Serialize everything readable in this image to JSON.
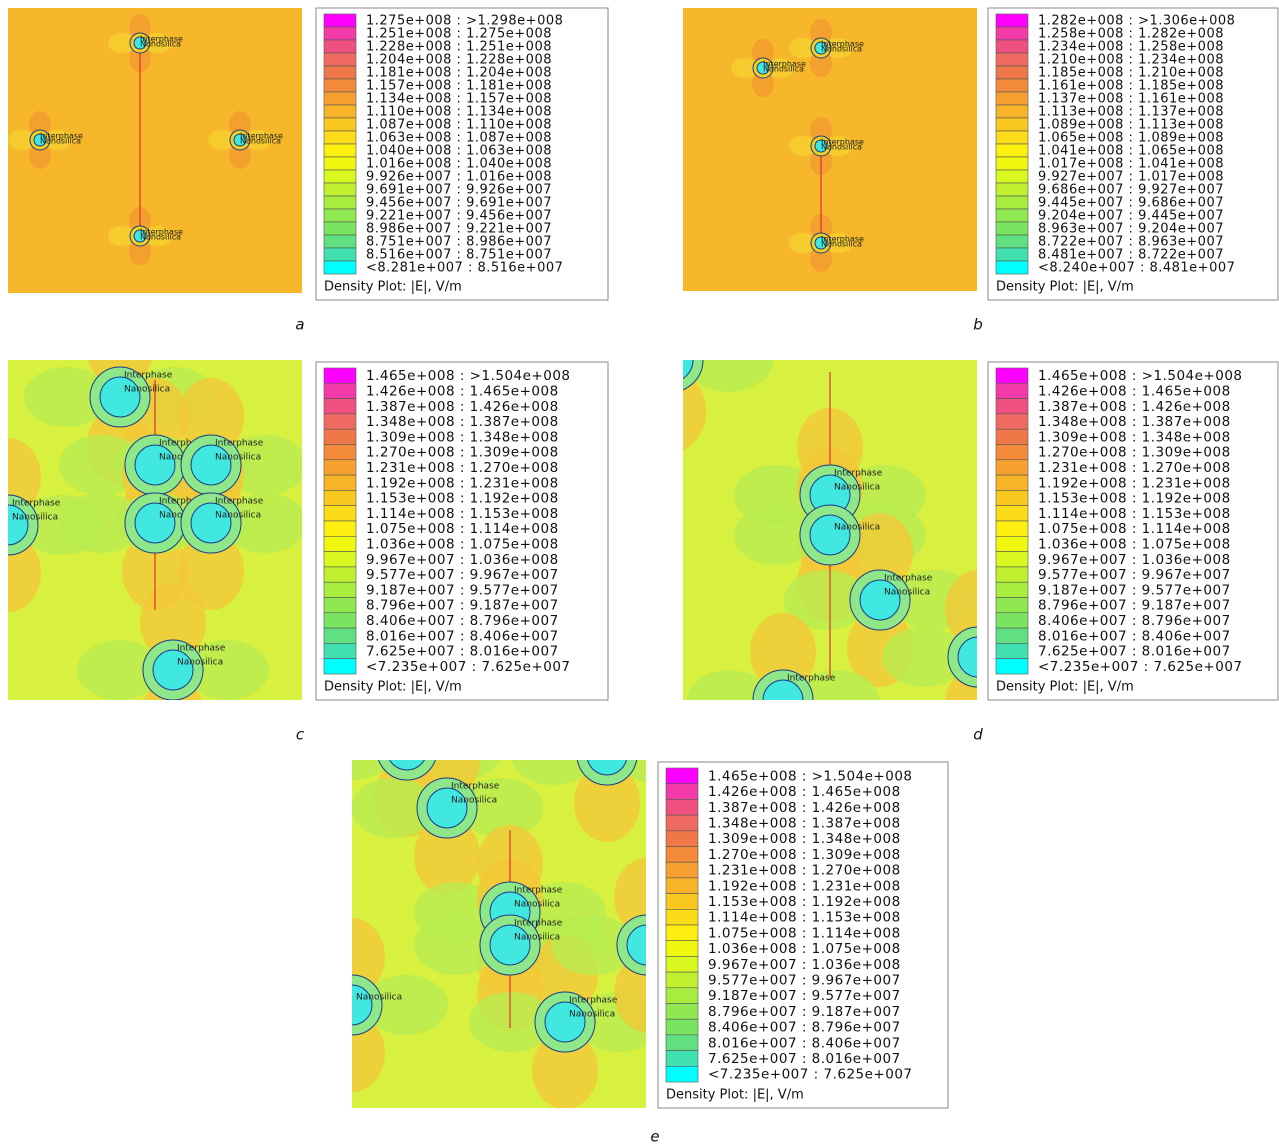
{
  "panels": [
    {
      "label": "a",
      "legend": {
        "rows": [
          "1.275e+008 : >1.298e+008",
          "1.251e+008 : 1.275e+008",
          "1.228e+008 : 1.251e+008",
          "1.204e+008 : 1.228e+008",
          "1.181e+008 : 1.204e+008",
          "1.157e+008 : 1.181e+008",
          "1.134e+008 : 1.157e+008",
          "1.110e+008 : 1.134e+008",
          "1.087e+008 : 1.110e+008",
          "1.063e+008 : 1.087e+008",
          "1.040e+008 : 1.063e+008",
          "1.016e+008 : 1.040e+008",
          "9.926e+007 : 1.016e+008",
          "9.691e+007 : 9.926e+007",
          "9.456e+007 : 9.691e+007",
          "9.221e+007 : 9.456e+007",
          "8.986e+007 : 9.221e+007",
          "8.751e+007 : 8.986e+007",
          "8.516e+007 : 8.751e+007",
          "<8.281e+007 : 8.516e+007"
        ],
        "title": "Density Plot: |E|, V/m"
      },
      "particles": [
        {
          "interphase": "Interphase",
          "core": "Nanosilica"
        },
        {
          "interphase": "Interphase",
          "core": "Nanosilica"
        },
        {
          "interphase": "Interphase",
          "core": "Nanosilica"
        },
        {
          "interphase": "Interphase",
          "core": "Nanosilica"
        }
      ]
    },
    {
      "label": "b",
      "legend": {
        "rows": [
          "1.282e+008 : >1.306e+008",
          "1.258e+008 : 1.282e+008",
          "1.234e+008 : 1.258e+008",
          "1.210e+008 : 1.234e+008",
          "1.185e+008 : 1.210e+008",
          "1.161e+008 : 1.185e+008",
          "1.137e+008 : 1.161e+008",
          "1.113e+008 : 1.137e+008",
          "1.089e+008 : 1.113e+008",
          "1.065e+008 : 1.089e+008",
          "1.041e+008 : 1.065e+008",
          "1.017e+008 : 1.041e+008",
          "9.927e+007 : 1.017e+008",
          "9.686e+007 : 9.927e+007",
          "9.445e+007 : 9.686e+007",
          "9.204e+007 : 9.445e+007",
          "8.963e+007 : 9.204e+007",
          "8.722e+007 : 8.963e+007",
          "8.481e+007 : 8.722e+007",
          "<8.240e+007 : 8.481e+007"
        ],
        "title": "Density Plot: |E|, V/m"
      },
      "particles": [
        {
          "interphase": "Interphase",
          "core": "Nanosilica"
        },
        {
          "interphase": "Interphase",
          "core": "Nanosilica"
        },
        {
          "interphase": "Interphase",
          "core": "Nanosilica"
        },
        {
          "interphase": "Interphase",
          "core": "Nanosilica"
        }
      ]
    },
    {
      "label": "c",
      "legend": {
        "rows": [
          "1.465e+008 : >1.504e+008",
          "1.426e+008 : 1.465e+008",
          "1.387e+008 : 1.426e+008",
          "1.348e+008 : 1.387e+008",
          "1.309e+008 : 1.348e+008",
          "1.270e+008 : 1.309e+008",
          "1.231e+008 : 1.270e+008",
          "1.192e+008 : 1.231e+008",
          "1.153e+008 : 1.192e+008",
          "1.114e+008 : 1.153e+008",
          "1.075e+008 : 1.114e+008",
          "1.036e+008 : 1.075e+008",
          "9.967e+007 : 1.036e+008",
          "9.577e+007 : 9.967e+007",
          "9.187e+007 : 9.577e+007",
          "8.796e+007 : 9.187e+007",
          "8.406e+007 : 8.796e+007",
          "8.016e+007 : 8.406e+007",
          "7.625e+007 : 8.016e+007",
          "<7.235e+007 : 7.625e+007"
        ],
        "title": "Density Plot: |E|, V/m"
      },
      "particles": [
        {
          "interphase": "Interphase",
          "core": "Nanosilica"
        },
        {
          "interphase": "Interphase",
          "core": "Nanosilica"
        },
        {
          "interphase": "Interphase",
          "core": "Nanosilica"
        },
        {
          "interphase": "Interphase",
          "core": "Nanosilica"
        },
        {
          "interphase": "Interphase",
          "core": "Nanosilica"
        },
        {
          "interphase": "Interphase",
          "core": "Nanosilica"
        },
        {
          "interphase": "Interphase",
          "core": "Nanosilica"
        }
      ]
    },
    {
      "label": "d",
      "legend": {
        "rows": [
          "1.465e+008 : >1.504e+008",
          "1.426e+008 : 1.465e+008",
          "1.387e+008 : 1.426e+008",
          "1.348e+008 : 1.387e+008",
          "1.309e+008 : 1.348e+008",
          "1.270e+008 : 1.309e+008",
          "1.231e+008 : 1.270e+008",
          "1.192e+008 : 1.231e+008",
          "1.153e+008 : 1.192e+008",
          "1.114e+008 : 1.153e+008",
          "1.075e+008 : 1.114e+008",
          "1.036e+008 : 1.075e+008",
          "9.967e+007 : 1.036e+008",
          "9.577e+007 : 9.967e+007",
          "9.187e+007 : 9.577e+007",
          "8.796e+007 : 9.187e+007",
          "8.406e+007 : 8.796e+007",
          "8.016e+007 : 8.406e+007",
          "7.625e+007 : 8.016e+007",
          "<7.235e+007 : 7.625e+007"
        ],
        "title": "Density Plot: |E|, V/m"
      },
      "particles": [
        {
          "core": "Nanosilica"
        },
        {
          "interphase": "Interphase",
          "core": "Nanosilica"
        },
        {
          "core": "Nanosilica"
        },
        {
          "interphase": "Interphase",
          "core": "Nanosilica"
        },
        {
          "interphase": "Interphase"
        }
      ]
    },
    {
      "label": "e",
      "legend": {
        "rows": [
          "1.465e+008 : >1.504e+008",
          "1.426e+008 : 1.465e+008",
          "1.387e+008 : 1.426e+008",
          "1.348e+008 : 1.387e+008",
          "1.309e+008 : 1.348e+008",
          "1.270e+008 : 1.309e+008",
          "1.231e+008 : 1.270e+008",
          "1.192e+008 : 1.231e+008",
          "1.153e+008 : 1.192e+008",
          "1.114e+008 : 1.153e+008",
          "1.075e+008 : 1.114e+008",
          "1.036e+008 : 1.075e+008",
          "9.967e+007 : 1.036e+008",
          "9.577e+007 : 9.967e+007",
          "9.187e+007 : 9.577e+007",
          "8.796e+007 : 9.187e+007",
          "8.406e+007 : 8.796e+007",
          "8.016e+007 : 8.406e+007",
          "7.625e+007 : 8.016e+007",
          "<7.235e+007 : 7.625e+007"
        ],
        "title": "Density Plot: |E|, V/m"
      },
      "particles": [
        {
          "interphase": "Interphase",
          "core": "Nanosilica"
        },
        {
          "interphase": "Interphase",
          "core": "Nanosilica"
        },
        {
          "core": "Nanosilica"
        },
        {
          "interphase": "Interphase",
          "core": "Nanosilica"
        },
        {
          "interphase": "Interphase",
          "core": "Nanosilica"
        }
      ]
    }
  ]
}
